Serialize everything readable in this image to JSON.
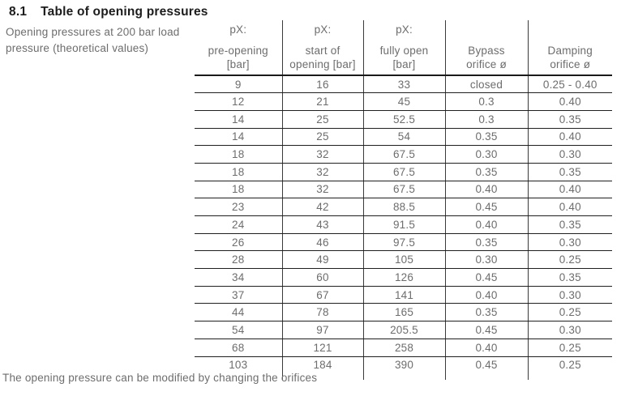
{
  "page": {
    "section_number": "8.1",
    "section_title": "Table of opening pressures",
    "intro_line1": "Opening pressures at 200 bar load",
    "intro_line2": "pressure (theoretical values)",
    "footer_note": "The opening pressure can be modified by changing the orifices"
  },
  "table": {
    "columns": [
      {
        "line1": "pX:",
        "line2": "pre-opening",
        "line3": "[bar]"
      },
      {
        "line1": "pX:",
        "line2": "start of",
        "line3": "opening [bar]"
      },
      {
        "line1": "pX:",
        "line2": "fully open",
        "line3": "[bar]"
      },
      {
        "line1": "",
        "line2": "Bypass",
        "line3": "orifice ø"
      },
      {
        "line1": "",
        "line2": "Damping",
        "line3": "orifice ø"
      }
    ],
    "rows": [
      [
        "9",
        "16",
        "33",
        "closed",
        "0.25 - 0.40"
      ],
      [
        "12",
        "21",
        "45",
        "0.3",
        "0.40"
      ],
      [
        "14",
        "25",
        "52.5",
        "0.3",
        "0.35"
      ],
      [
        "14",
        "25",
        "54",
        "0.35",
        "0.40"
      ],
      [
        "18",
        "32",
        "67.5",
        "0.30",
        "0.30"
      ],
      [
        "18",
        "32",
        "67.5",
        "0.35",
        "0.35"
      ],
      [
        "18",
        "32",
        "67.5",
        "0.40",
        "0.40"
      ],
      [
        "23",
        "42",
        "88.5",
        "0.45",
        "0.40"
      ],
      [
        "24",
        "43",
        "91.5",
        "0.40",
        "0.35"
      ],
      [
        "26",
        "46",
        "97.5",
        "0.35",
        "0.30"
      ],
      [
        "28",
        "49",
        "105",
        "0.30",
        "0.25"
      ],
      [
        "34",
        "60",
        "126",
        "0.45",
        "0.35"
      ],
      [
        "37",
        "67",
        "141",
        "0.40",
        "0.30"
      ],
      [
        "44",
        "78",
        "165",
        "0.35",
        "0.25"
      ],
      [
        "54",
        "97",
        "205.5",
        "0.45",
        "0.30"
      ],
      [
        "68",
        "121",
        "258",
        "0.40",
        "0.25"
      ],
      [
        "103",
        "184",
        "390",
        "0.45",
        "0.25"
      ]
    ]
  },
  "colors": {
    "title_text": "#1c1c1c",
    "body_text": "#6d6d6d",
    "rule_horizontal": "#1f1f1f",
    "rule_vertical": "#3a3a3a",
    "background": "#ffffff"
  }
}
